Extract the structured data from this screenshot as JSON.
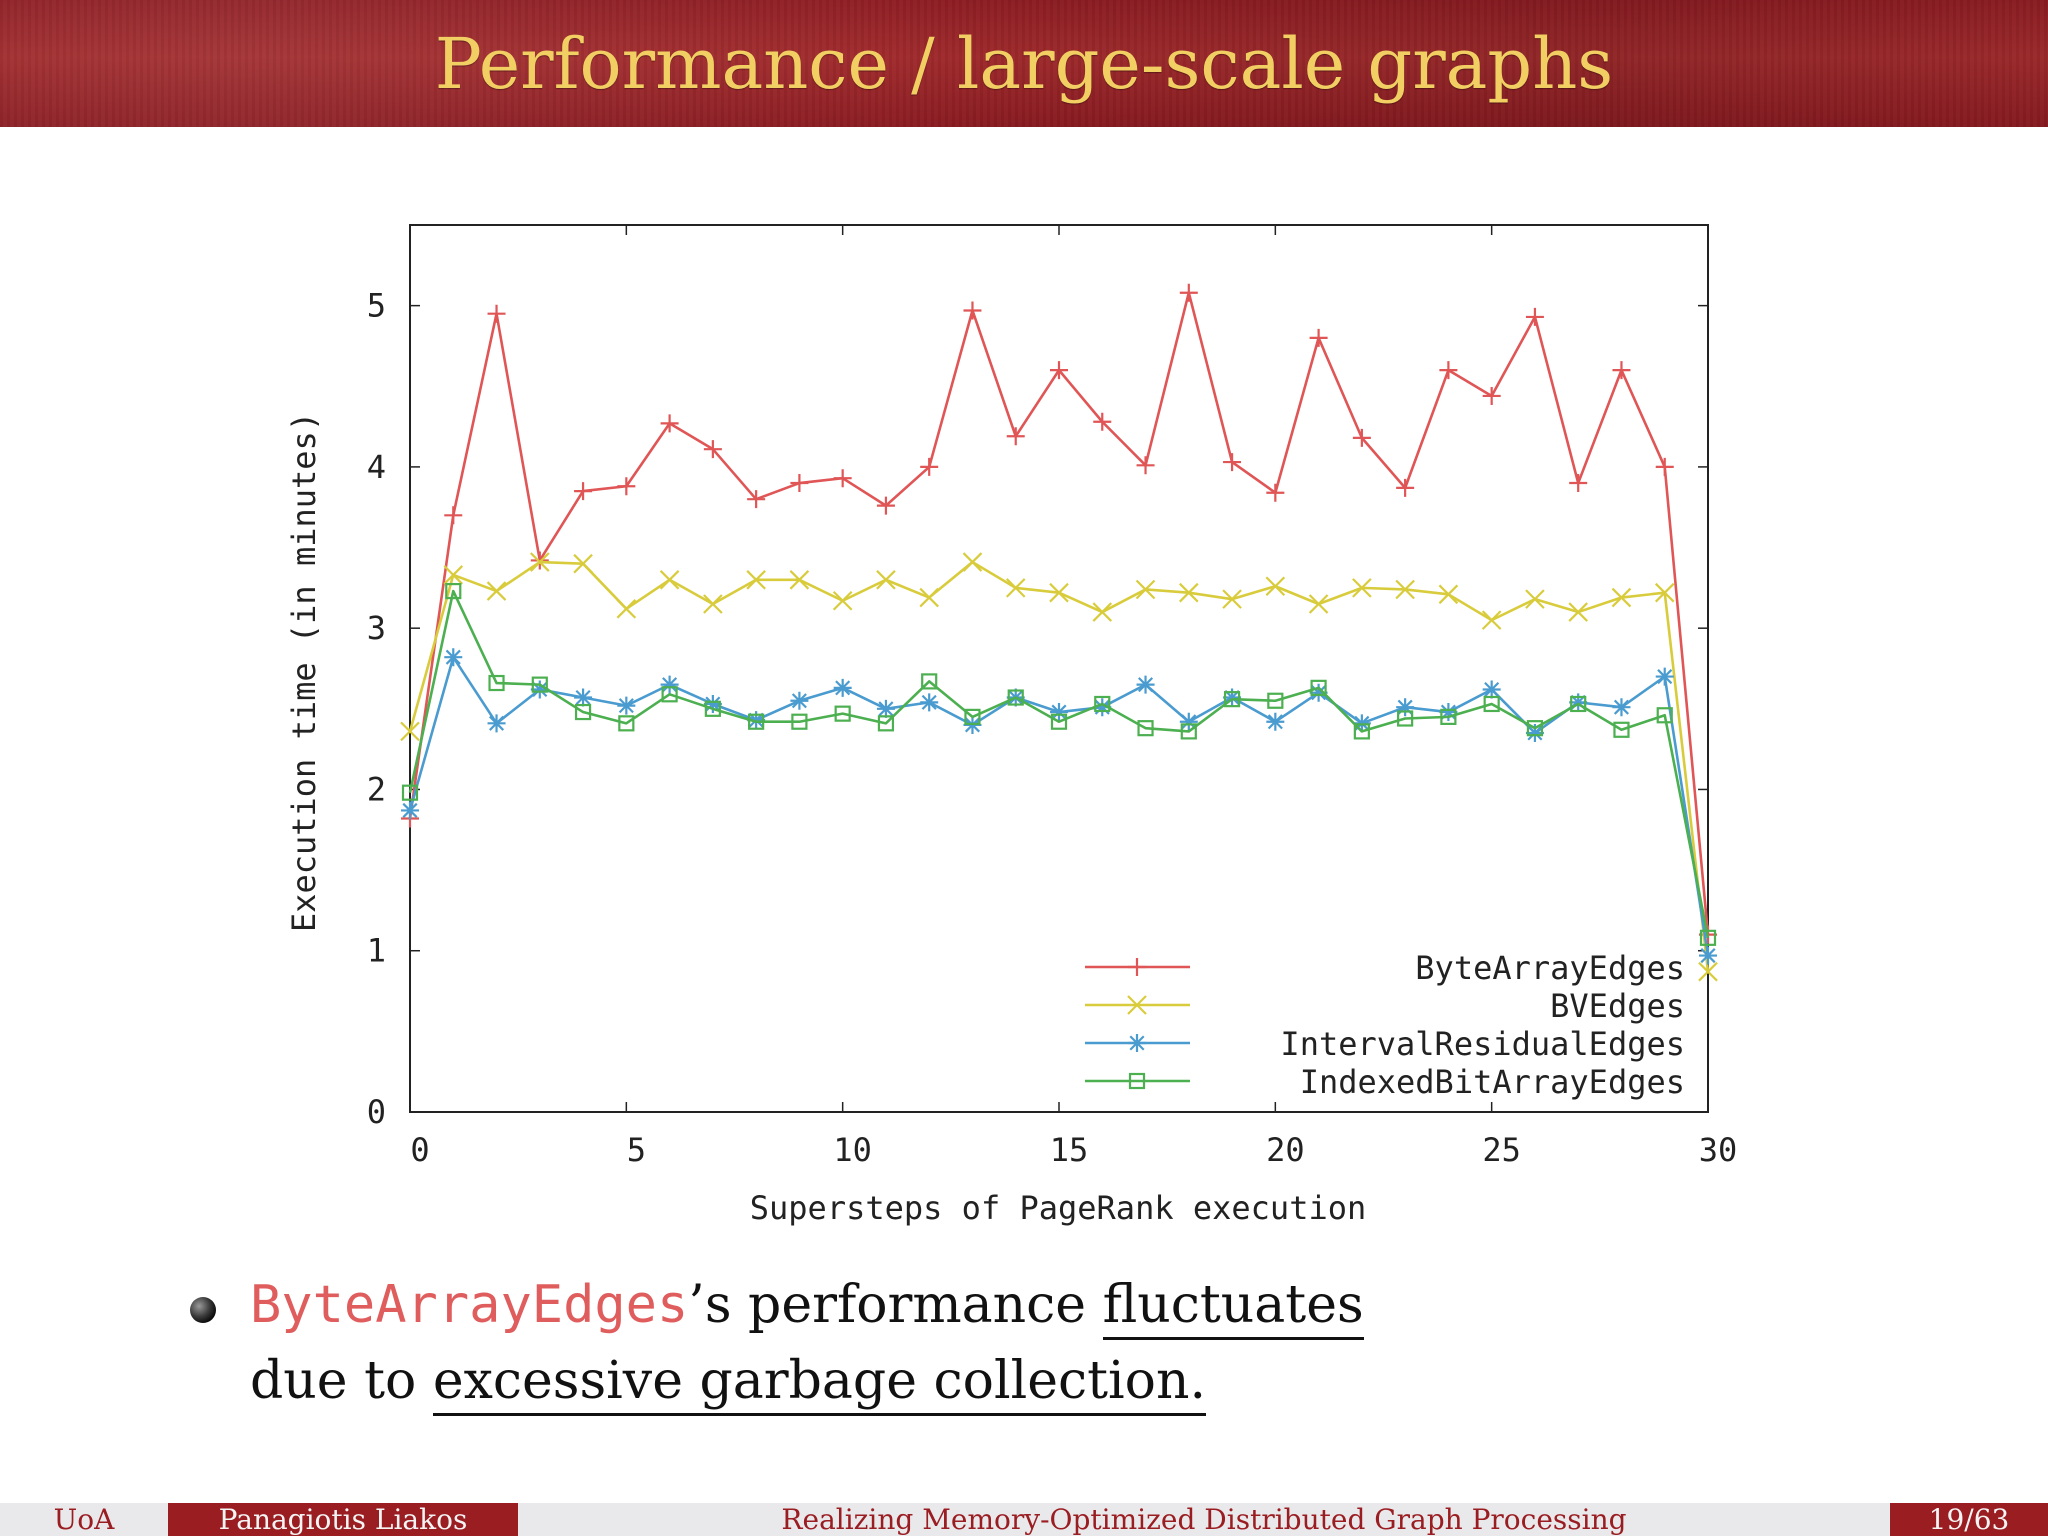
{
  "slide": {
    "title": "Performance / large-scale graphs"
  },
  "bullet": {
    "code_term": "ByteArrayEdges",
    "line1_rest_a": "’s performance ",
    "line1_underlined": "fluctuates",
    "line2_prefix": "due to ",
    "line2_underlined": "excessive garbage collection",
    "line2_suffix": "."
  },
  "footer": {
    "institution": "UoA",
    "author": "Panagiotis Liakos",
    "talk_title": "Realizing Memory-Optimized Distributed Graph Processing",
    "page": "19/63"
  },
  "colors": {
    "header_bg": "#9a1d22",
    "title_text": "#f2cf63",
    "accent_code": "#e05d5d"
  },
  "chart_data": {
    "type": "line",
    "title": "",
    "xlabel": "Supersteps of PageRank execution",
    "ylabel": "Execution time (in minutes)",
    "xlim": [
      0,
      30
    ],
    "ylim": [
      0,
      5.5
    ],
    "xticks": [
      0,
      5,
      10,
      15,
      20,
      25,
      30
    ],
    "yticks": [
      0,
      1,
      2,
      3,
      4,
      5
    ],
    "grid": false,
    "legend_position": "bottom-right",
    "x": [
      0,
      1,
      2,
      3,
      4,
      5,
      6,
      7,
      8,
      9,
      10,
      11,
      12,
      13,
      14,
      15,
      16,
      17,
      18,
      19,
      20,
      21,
      22,
      23,
      24,
      25,
      26,
      27,
      28,
      29,
      30
    ],
    "series": [
      {
        "name": "ByteArrayEdges",
        "color": "#e05555",
        "marker": "plus",
        "values": [
          1.82,
          3.7,
          4.95,
          3.42,
          3.85,
          3.88,
          4.27,
          4.11,
          3.8,
          3.9,
          3.93,
          3.76,
          4.0,
          4.97,
          4.19,
          4.6,
          4.28,
          4.01,
          5.08,
          4.03,
          3.84,
          4.8,
          4.18,
          3.87,
          4.6,
          4.44,
          4.93,
          3.9,
          4.6,
          4.0,
          1.1
        ]
      },
      {
        "name": "BVEdges",
        "color": "#d9cc3c",
        "marker": "cross",
        "values": [
          2.36,
          3.33,
          3.23,
          3.41,
          3.4,
          3.12,
          3.3,
          3.15,
          3.3,
          3.3,
          3.17,
          3.3,
          3.19,
          3.41,
          3.25,
          3.22,
          3.1,
          3.24,
          3.22,
          3.18,
          3.26,
          3.15,
          3.25,
          3.24,
          3.21,
          3.05,
          3.18,
          3.1,
          3.19,
          3.22,
          0.87
        ]
      },
      {
        "name": "IntervalResidualEdges",
        "color": "#4a9bcf",
        "marker": "star",
        "values": [
          1.87,
          2.82,
          2.41,
          2.62,
          2.57,
          2.52,
          2.65,
          2.53,
          2.43,
          2.55,
          2.63,
          2.5,
          2.54,
          2.4,
          2.57,
          2.48,
          2.51,
          2.65,
          2.42,
          2.57,
          2.42,
          2.6,
          2.41,
          2.51,
          2.48,
          2.62,
          2.35,
          2.54,
          2.51,
          2.7,
          0.97
        ]
      },
      {
        "name": "IndexedBitArrayEdges",
        "color": "#4caf50",
        "marker": "square",
        "values": [
          1.98,
          3.23,
          2.66,
          2.65,
          2.48,
          2.41,
          2.59,
          2.5,
          2.42,
          2.42,
          2.47,
          2.41,
          2.67,
          2.45,
          2.57,
          2.42,
          2.53,
          2.38,
          2.36,
          2.56,
          2.55,
          2.63,
          2.36,
          2.44,
          2.45,
          2.53,
          2.38,
          2.53,
          2.37,
          2.46,
          1.08
        ]
      }
    ]
  }
}
